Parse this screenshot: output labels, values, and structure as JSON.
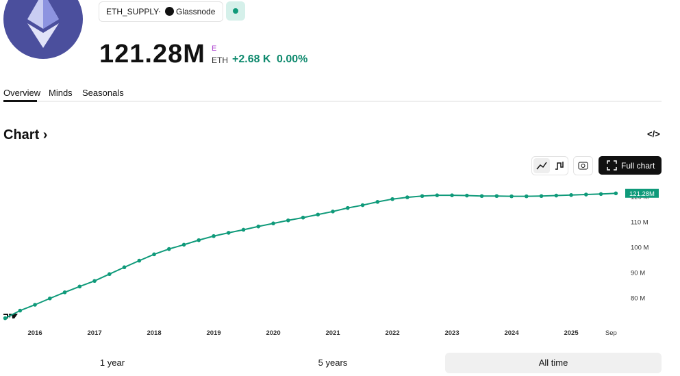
{
  "header": {
    "symbol": "ETH_SUPPLY",
    "source": "Glassnode",
    "price": "121.28M",
    "unit_badge": "E",
    "unit": "ETH",
    "change": "+2.68 K",
    "change_pct": "0.00%"
  },
  "tabs": [
    "Overview",
    "Minds",
    "Seasonals"
  ],
  "section_title": "Chart",
  "toolbar": {
    "full_chart": "Full chart"
  },
  "ranges": [
    "1 year",
    "5 years",
    "All time"
  ],
  "chart_data": {
    "type": "line",
    "color": "#0f9a7a",
    "x": [
      2015.5,
      2015.75,
      2016,
      2016.25,
      2016.5,
      2016.75,
      2017,
      2017.25,
      2017.5,
      2017.75,
      2018,
      2018.25,
      2018.5,
      2018.75,
      2019,
      2019.25,
      2019.5,
      2019.75,
      2020,
      2020.25,
      2020.5,
      2020.75,
      2021,
      2021.25,
      2021.5,
      2021.75,
      2022,
      2022.25,
      2022.5,
      2022.75,
      2023,
      2023.25,
      2023.5,
      2023.75,
      2024,
      2024.25,
      2024.5,
      2024.75,
      2025,
      2025.25,
      2025.5,
      2025.75
    ],
    "values": [
      72.0,
      75.0,
      77.3,
      79.8,
      82.2,
      84.5,
      86.7,
      89.4,
      92.1,
      94.7,
      97.2,
      99.3,
      101.0,
      102.8,
      104.4,
      105.7,
      106.9,
      108.2,
      109.4,
      110.6,
      111.7,
      112.9,
      114.1,
      115.5,
      116.6,
      117.9,
      119.0,
      119.7,
      120.2,
      120.5,
      120.5,
      120.4,
      120.2,
      120.2,
      120.1,
      120.1,
      120.2,
      120.4,
      120.6,
      120.8,
      121.0,
      121.28
    ],
    "last_value_label": "121.28M",
    "xlim": [
      2015.45,
      2025.85
    ],
    "xticks": [
      2016,
      2017,
      2018,
      2019,
      2020,
      2021,
      2022,
      2023,
      2024,
      2025,
      {
        "value": 2025.67,
        "label": "Sep"
      }
    ],
    "ylim": [
      72,
      125
    ],
    "yticks": [
      {
        "value": 80,
        "label": "80 M"
      },
      {
        "value": 90,
        "label": "90 M"
      },
      {
        "value": 100,
        "label": "100 M"
      },
      {
        "value": 110,
        "label": "110 M"
      },
      {
        "value": 120,
        "label": "120 M"
      }
    ]
  }
}
